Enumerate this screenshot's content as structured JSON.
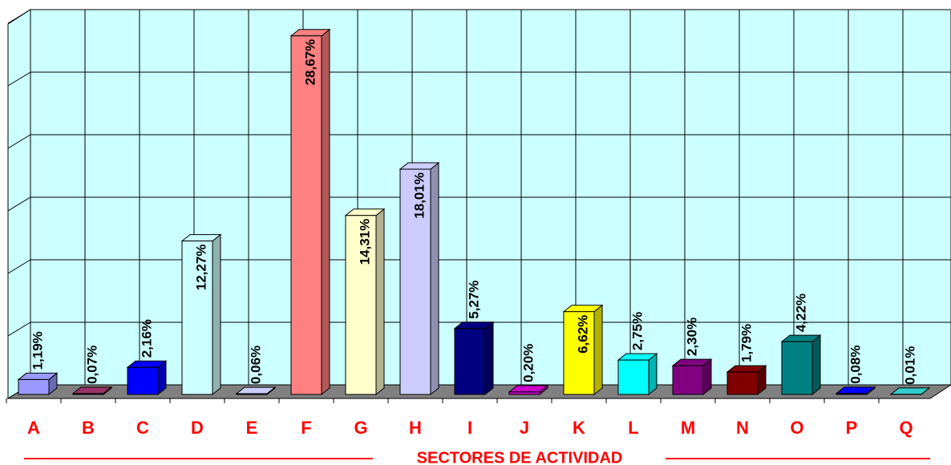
{
  "chart_data": {
    "type": "bar3d",
    "x_label": "SECTORES DE ACTIVIDAD",
    "categories": [
      "A",
      "B",
      "C",
      "D",
      "E",
      "F",
      "G",
      "H",
      "I",
      "J",
      "K",
      "L",
      "M",
      "N",
      "O",
      "P",
      "Q"
    ],
    "values": [
      1.19,
      0.07,
      2.16,
      12.27,
      0.06,
      28.67,
      14.31,
      18.01,
      5.27,
      0.2,
      6.62,
      2.75,
      2.3,
      1.79,
      4.22,
      0.08,
      0.01
    ],
    "value_labels": [
      "1,19%",
      "0,07%",
      "2,16%",
      "12,27%",
      "0,06%",
      "28,67%",
      "14,31%",
      "18,01%",
      "5,27%",
      "0,20%",
      "6,62%",
      "2,75%",
      "2,30%",
      "1,79%",
      "4,22%",
      "0,08%",
      "0,01%"
    ],
    "colors": [
      "#9999ff",
      "#993366",
      "#0000ff",
      "#ccffff",
      "#ccccff",
      "#ff8080",
      "#ffffcc",
      "#ccccff",
      "#000080",
      "#cc00cc",
      "#ffff00",
      "#00ffff",
      "#800080",
      "#800000",
      "#008080",
      "#0000ff",
      "#33cccc"
    ],
    "ylim": [
      0,
      30
    ],
    "yticks": [
      0,
      5,
      10,
      15,
      20,
      25,
      30
    ],
    "grid": true
  }
}
